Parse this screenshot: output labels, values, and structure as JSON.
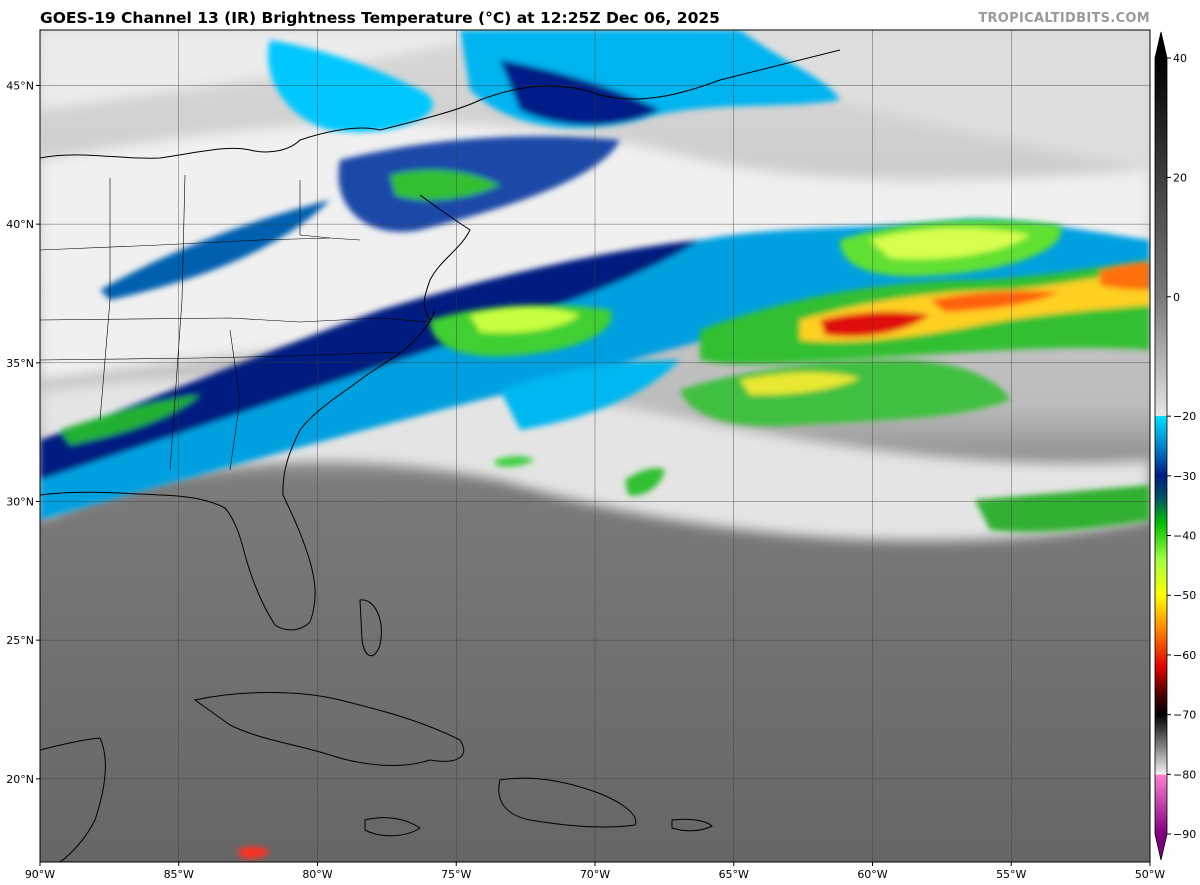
{
  "header": {
    "title": "GOES-19 Channel 13 (IR) Brightness Temperature (°C) at 12:25Z Dec 06, 2025",
    "watermark": "TROPICALTIDBITS.COM"
  },
  "map": {
    "lon_range": [
      -90,
      -50
    ],
    "lat_range": [
      17,
      47
    ],
    "lon_ticks": [
      {
        "value": -90,
        "label": "90°W"
      },
      {
        "value": -85,
        "label": "85°W"
      },
      {
        "value": -80,
        "label": "80°W"
      },
      {
        "value": -75,
        "label": "75°W"
      },
      {
        "value": -70,
        "label": "70°W"
      },
      {
        "value": -65,
        "label": "65°W"
      },
      {
        "value": -60,
        "label": "60°W"
      },
      {
        "value": -55,
        "label": "55°W"
      },
      {
        "value": -50,
        "label": "50°W"
      }
    ],
    "lat_ticks": [
      {
        "value": 45,
        "label": "45°N"
      },
      {
        "value": 40,
        "label": "40°N"
      },
      {
        "value": 35,
        "label": "35°N"
      },
      {
        "value": 30,
        "label": "30°N"
      },
      {
        "value": 25,
        "label": "25°N"
      },
      {
        "value": 20,
        "label": "20°N"
      }
    ],
    "colors": {
      "background_gray": "#6e6e6e",
      "coastline": "#000000",
      "gridline": "#3a3a3a"
    }
  },
  "colorbar": {
    "min": -90,
    "max": 40,
    "ticks": [
      {
        "value": 40,
        "label": "40"
      },
      {
        "value": 20,
        "label": "20"
      },
      {
        "value": 0,
        "label": "0"
      },
      {
        "value": -20,
        "label": "−20"
      },
      {
        "value": -30,
        "label": "−30"
      },
      {
        "value": -40,
        "label": "−40"
      },
      {
        "value": -50,
        "label": "−50"
      },
      {
        "value": -60,
        "label": "−60"
      },
      {
        "value": -70,
        "label": "−70"
      },
      {
        "value": -80,
        "label": "−80"
      },
      {
        "value": -90,
        "label": "−90"
      }
    ],
    "stops": [
      {
        "value": 40,
        "color": "#000000"
      },
      {
        "value": 0,
        "color": "#7a7a7a"
      },
      {
        "value": -20,
        "color": "#e6e6e6"
      },
      {
        "value": -20.01,
        "color": "#00e0ff"
      },
      {
        "value": -26,
        "color": "#0070c0"
      },
      {
        "value": -30,
        "color": "#001a80"
      },
      {
        "value": -34,
        "color": "#005a60"
      },
      {
        "value": -38,
        "color": "#00c000"
      },
      {
        "value": -44,
        "color": "#a0ff40"
      },
      {
        "value": -50,
        "color": "#ffff00"
      },
      {
        "value": -56,
        "color": "#ff8000"
      },
      {
        "value": -62,
        "color": "#e00000"
      },
      {
        "value": -66,
        "color": "#600000"
      },
      {
        "value": -70,
        "color": "#000000"
      },
      {
        "value": -80,
        "color": "#f2f2f2"
      },
      {
        "value": -80.01,
        "color": "#ff80d0"
      },
      {
        "value": -90,
        "color": "#800080"
      }
    ]
  }
}
